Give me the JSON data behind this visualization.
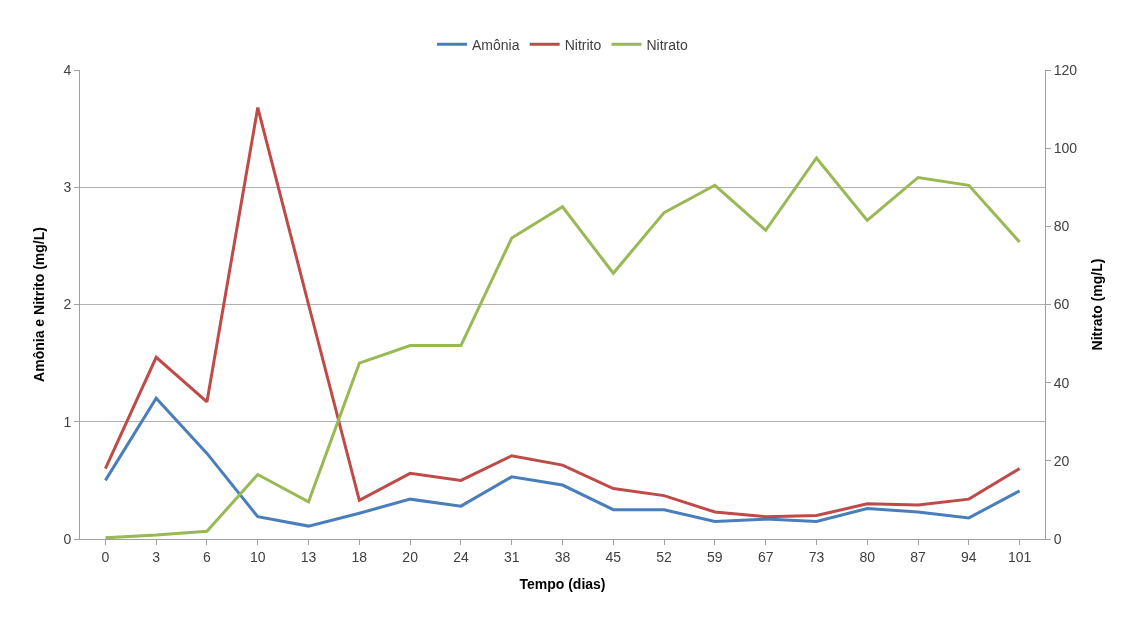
{
  "chart_data": {
    "type": "line",
    "categories": [
      "0",
      "3",
      "6",
      "10",
      "13",
      "18",
      "20",
      "24",
      "31",
      "38",
      "45",
      "52",
      "59",
      "67",
      "73",
      "80",
      "87",
      "94",
      "101"
    ],
    "xlabel": "Tempo (dias)",
    "ylabel": "Amônia e Nitrito (mg/L)",
    "y2label": "Nitrato (mg/L)",
    "series": [
      {
        "name": "Amônia",
        "color": "#4a7ebb",
        "values": [
          0.5,
          1.2,
          0.73,
          0.19,
          0.11,
          0.22,
          0.34,
          0.28,
          0.53,
          0.46,
          0.25,
          0.25,
          0.15,
          0.17,
          0.15,
          0.26,
          0.23,
          0.18,
          0.41
        ]
      },
      {
        "name": "Nitrito",
        "color": "#be4b48",
        "values": [
          0.6,
          1.55,
          1.17,
          3.68,
          2.0,
          0.33,
          0.56,
          0.5,
          0.71,
          0.63,
          0.43,
          0.37,
          0.23,
          0.19,
          0.2,
          0.3,
          0.29,
          0.34,
          0.6
        ]
      },
      {
        "name": "Nitrato",
        "color": "#98b954",
        "axis": "y2",
        "values": [
          0.3,
          1,
          2,
          16.5,
          9.5,
          45,
          49.5,
          49.5,
          77,
          85,
          68,
          83.5,
          90.5,
          79,
          97.5,
          81.5,
          92.5,
          90.5,
          76
        ]
      }
    ],
    "ylim": [
      0,
      4
    ],
    "yticks": [
      0,
      1,
      2,
      3,
      4
    ],
    "y2lim": [
      0,
      120
    ],
    "y2ticks": [
      0,
      20,
      40,
      60,
      80,
      100,
      120
    ],
    "grid": "y",
    "legend": "top",
    "marker": "none",
    "line_style": "solid"
  }
}
